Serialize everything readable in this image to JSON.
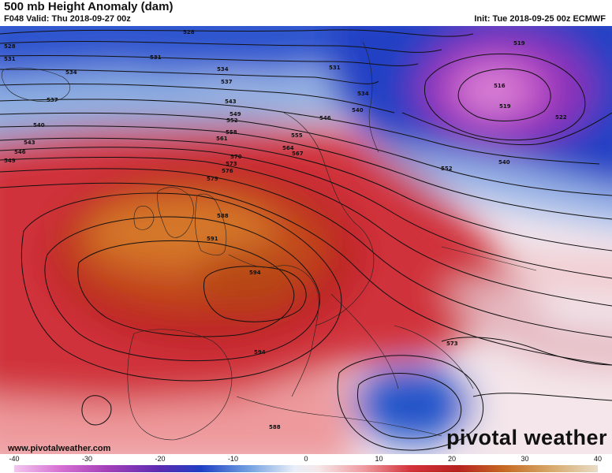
{
  "header": {
    "title": "500 mb Height Anomaly (dam)",
    "valid": "F048 Valid: Thu 2018-09-27 00z",
    "init": "Init: Tue 2018-09-25 00z ECMWF"
  },
  "footer": {
    "site": "www.pivotalweather.com",
    "logo_text": "pivotal weather"
  },
  "colorbar": {
    "ticks": [
      "-40",
      "-30",
      "-20",
      "-10",
      "0",
      "10",
      "20",
      "30",
      "40"
    ],
    "tick_values": [
      -40,
      -30,
      -20,
      -10,
      0,
      10,
      20,
      30,
      40
    ],
    "range": [
      -40,
      40
    ]
  },
  "contour_labels": {
    "l528a": "528",
    "l528b": "528",
    "l531a": "531",
    "l531b": "531",
    "l531c": "531",
    "l534a": "534",
    "l534b": "534",
    "l534c": "534",
    "l537a": "537",
    "l537b": "537",
    "l540a": "540",
    "l540b": "540",
    "l540c": "540",
    "l543a": "543",
    "l543b": "543",
    "l546a": "546",
    "l546b": "546",
    "l549a": "549",
    "l549b": "549",
    "l552a": "552",
    "l552b": "552",
    "l555": "555",
    "l558": "558",
    "l561": "561",
    "l564": "564",
    "l567": "567",
    "l570": "570",
    "l573a": "573",
    "l573b": "573",
    "l576": "576",
    "l579": "579",
    "l588a": "588",
    "l588b": "588",
    "l591": "591",
    "l594a": "594",
    "l594b": "594",
    "l516": "516",
    "l519a": "519",
    "l519b": "519",
    "l522": "522"
  }
}
